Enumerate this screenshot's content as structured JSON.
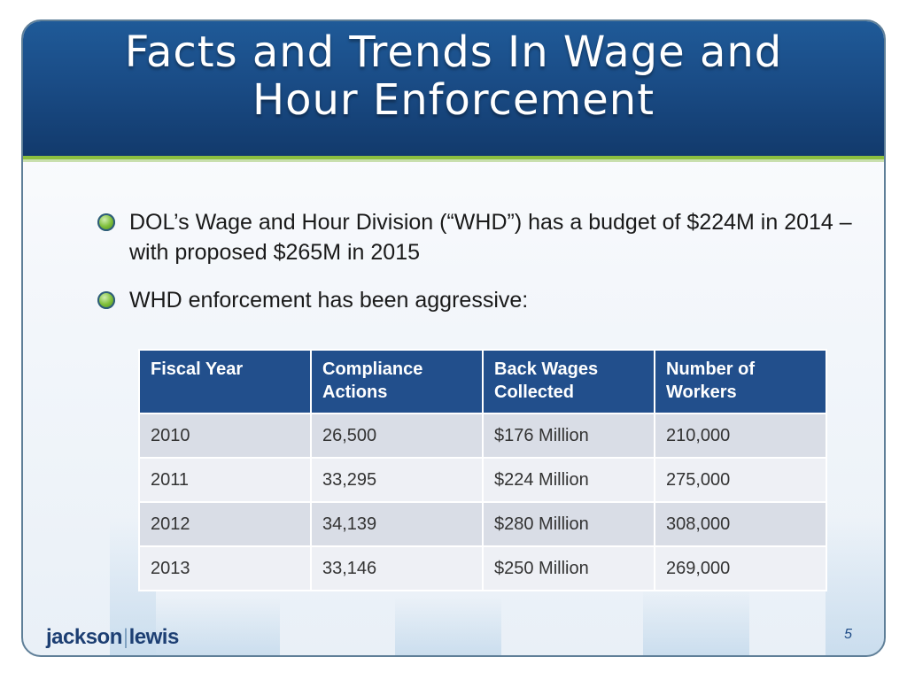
{
  "slide": {
    "title_line1": "Facts and Trends In Wage and",
    "title_line2": "Hour Enforcement",
    "bullets": [
      "DOL’s Wage and Hour Division (“WHD”) has a budget of $224M in 2014 – with proposed $265M in 2015",
      "WHD enforcement has been aggressive:"
    ],
    "table": {
      "headers": [
        "Fiscal Year",
        "Compliance Actions",
        "Back Wages Collected",
        "Number of Workers"
      ],
      "rows": [
        [
          "2010",
          "26,500",
          "$176 Million",
          "210,000"
        ],
        [
          "2011",
          "33,295",
          "$224 Million",
          "275,000"
        ],
        [
          "2012",
          "34,139",
          "$280 Million",
          "308,000"
        ],
        [
          "2013",
          "33,146",
          "$250 Million",
          "269,000"
        ]
      ]
    },
    "logo_left": "jackson",
    "logo_sep": "|",
    "logo_right": "lewis",
    "page_number": "5"
  },
  "colors": {
    "header_blue": "#1a4c86",
    "accent_green": "#8cbf3f",
    "table_header": "#224f8c"
  }
}
